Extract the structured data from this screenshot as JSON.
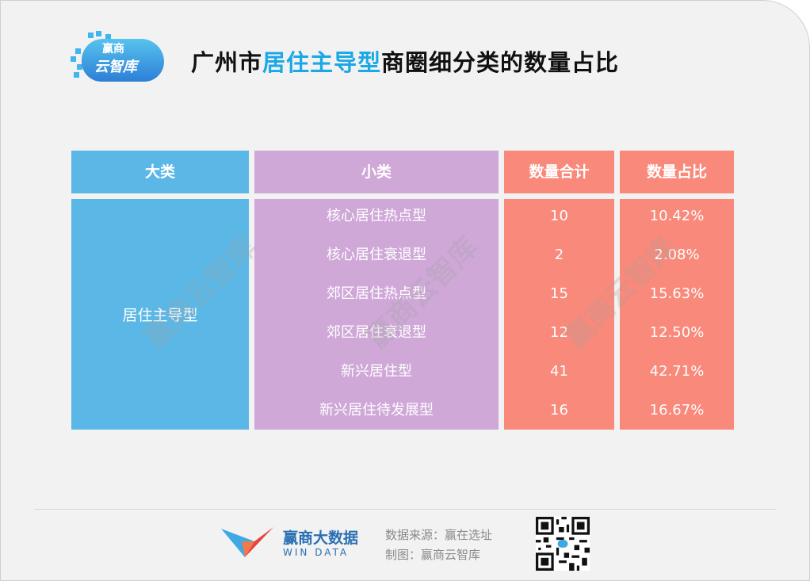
{
  "logo": {
    "line1": "赢商",
    "line2": "云智库"
  },
  "title": {
    "prefix": "广州市",
    "highlight": "居住主导型",
    "suffix": "商圈细分类的数量占比"
  },
  "table": {
    "headers": [
      "大类",
      "小类",
      "数量合计",
      "数量占比"
    ],
    "category": "居住主导型",
    "rows": [
      {
        "sub": "核心居住热点型",
        "count": "10",
        "pct": "10.42%"
      },
      {
        "sub": "核心居住衰退型",
        "count": "2",
        "pct": "2.08%"
      },
      {
        "sub": "郊区居住热点型",
        "count": "15",
        "pct": "15.63%"
      },
      {
        "sub": "郊区居住衰退型",
        "count": "12",
        "pct": "12.50%"
      },
      {
        "sub": "新兴居住型",
        "count": "41",
        "pct": "42.71%"
      },
      {
        "sub": "新兴居住待发展型",
        "count": "16",
        "pct": "16.67%"
      }
    ]
  },
  "watermark": "赢商云智库",
  "footer": {
    "brand_cn": "赢商大数据",
    "brand_en": "WIN DATA",
    "source": "数据来源：赢在选址",
    "maker": "制图：赢商云智库"
  },
  "colors": {
    "category_col": "#5bb7e6",
    "sub_col": "#cfa8d8",
    "value_cols": "#f9897a",
    "title_highlight": "#1aa8e6"
  }
}
